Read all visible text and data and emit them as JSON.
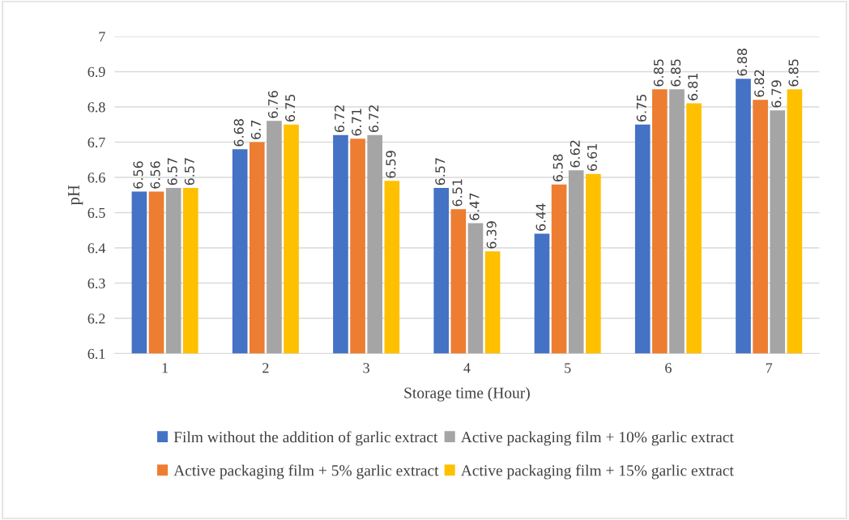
{
  "chart_data": {
    "type": "bar",
    "xlabel": "Storage time (Hour)",
    "ylabel": "pH",
    "categories": [
      "1",
      "2",
      "3",
      "4",
      "5",
      "6",
      "7"
    ],
    "series": [
      {
        "name": "Film without the addition of garlic extract",
        "color": "#4472c4",
        "values": [
          6.56,
          6.68,
          6.72,
          6.57,
          6.44,
          6.75,
          6.88
        ]
      },
      {
        "name": "Active packaging film + 5% garlic extract",
        "color": "#ed7d31",
        "values": [
          6.56,
          6.7,
          6.71,
          6.51,
          6.58,
          6.85,
          6.82
        ]
      },
      {
        "name": "Active packaging film + 10% garlic extract",
        "color": "#a5a5a5",
        "values": [
          6.57,
          6.76,
          6.72,
          6.47,
          6.62,
          6.85,
          6.79
        ]
      },
      {
        "name": "Active packaging film + 15% garlic extract",
        "color": "#ffc000",
        "values": [
          6.57,
          6.75,
          6.59,
          6.39,
          6.61,
          6.81,
          6.85
        ]
      }
    ],
    "ylim": [
      6.1,
      7
    ],
    "yticks": [
      6.1,
      6.2,
      6.3,
      6.4,
      6.5,
      6.6,
      6.7,
      6.8,
      6.9,
      7
    ],
    "grid": "y",
    "legend": "bottom",
    "data_labels": true
  }
}
